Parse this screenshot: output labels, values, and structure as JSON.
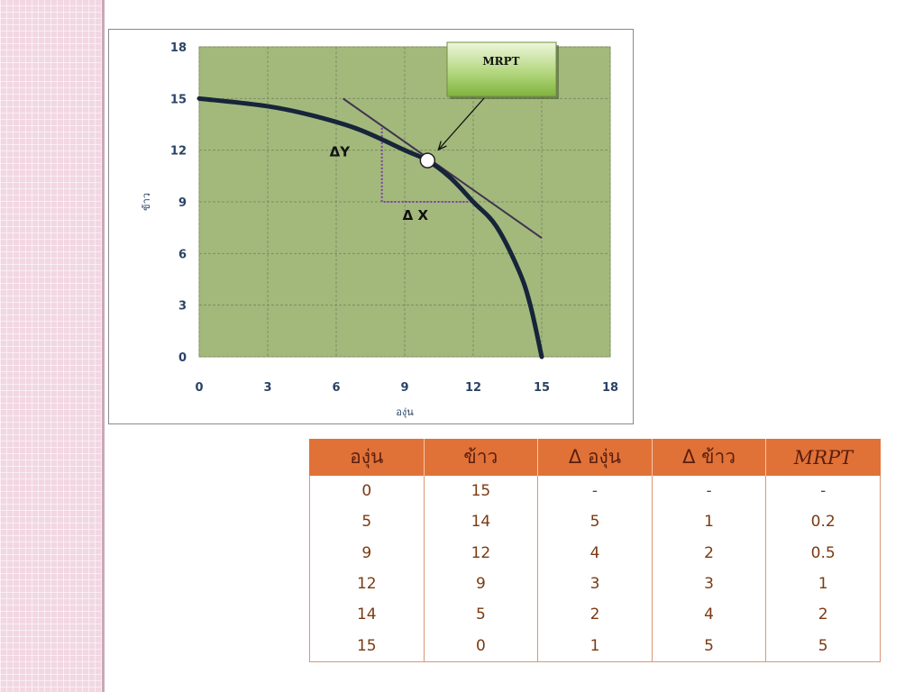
{
  "chart_data": {
    "type": "line",
    "xlabel": "องุ่น",
    "ylabel": "ข้าว",
    "xlim": [
      0,
      18
    ],
    "ylim": [
      0,
      18
    ],
    "xticks": [
      0,
      3,
      6,
      9,
      12,
      15,
      18
    ],
    "yticks": [
      0,
      3,
      6,
      9,
      12,
      15,
      18
    ],
    "grid": true,
    "series": [
      {
        "x": [
          0,
          3,
          5,
          7,
          9,
          10,
          11,
          12,
          13,
          14,
          14.5,
          15
        ],
        "y": [
          15,
          14.55,
          14,
          13.2,
          12,
          11.4,
          10.4,
          9,
          7.6,
          5,
          3,
          0
        ]
      }
    ],
    "tangent": {
      "x": [
        6.3,
        15
      ],
      "y": [
        15,
        6.9
      ]
    },
    "point": {
      "x": 10,
      "y": 11.4
    },
    "delta_box": {
      "x1": 8,
      "x2": 12,
      "y1": 13.3,
      "y2": 9
    },
    "annotations": {
      "delta_y": "ΔY",
      "delta_x": "Δ X",
      "callout": "MRPT"
    }
  },
  "table": {
    "headers": [
      "องุ่น",
      "ข้าว",
      "Δ องุ่น",
      "Δ ข้าว",
      "MRPT"
    ],
    "rows": [
      [
        "0",
        "15",
        "-",
        "-",
        "-"
      ],
      [
        "5",
        "14",
        "5",
        "1",
        "0.2"
      ],
      [
        "9",
        "12",
        "4",
        "2",
        "0.5"
      ],
      [
        "12",
        "9",
        "3",
        "3",
        "1"
      ],
      [
        "14",
        "5",
        "2",
        "4",
        "2"
      ],
      [
        "15",
        "0",
        "1",
        "5",
        "5"
      ]
    ]
  },
  "colors": {
    "plot_bg": "#a3b97c",
    "curve": "#17243a",
    "tangent": "#3f3350",
    "delta_box": "#7a3fa6",
    "table_header": "#e07238"
  }
}
